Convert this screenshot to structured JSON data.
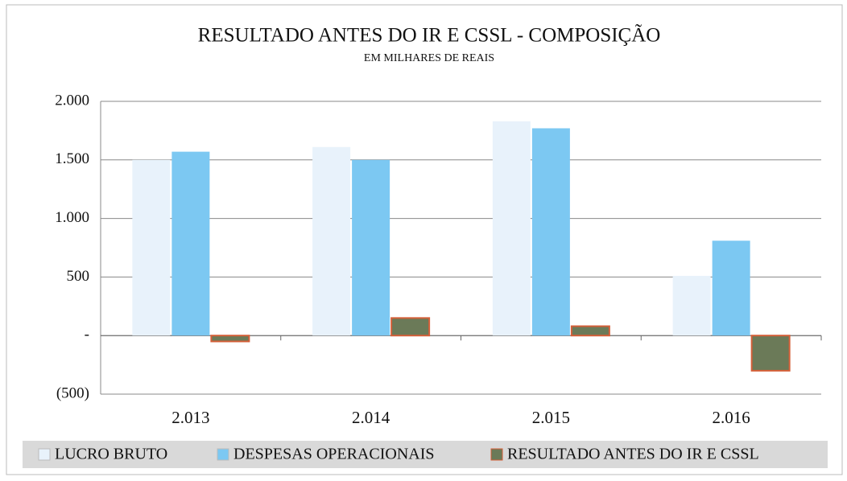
{
  "chart_data": {
    "type": "bar",
    "title": "RESULTADO ANTES DO IR E CSSL - COMPOSIÇÃO",
    "subtitle": "EM MILHARES  DE REAIS",
    "categories": [
      "2.013",
      "2.014",
      "2.015",
      "2.016"
    ],
    "series": [
      {
        "name": "LUCRO BRUTO",
        "color": "#e8f2fb",
        "values": [
          1500,
          1610,
          1830,
          510
        ]
      },
      {
        "name": "DESPESAS OPERACIONAIS",
        "color": "#7cc8f2",
        "values": [
          1570,
          1500,
          1770,
          810
        ]
      },
      {
        "name": "RESULTADO ANTES DO IR E CSSL",
        "color": "#6b7a58",
        "values": [
          -50,
          150,
          80,
          -300
        ]
      }
    ],
    "ylim": [
      -500,
      2000
    ],
    "yticks": [
      {
        "value": -500,
        "label": "(500)"
      },
      {
        "value": 0,
        "label": "-"
      },
      500,
      {
        "value": 1000,
        "label": "1.000"
      },
      {
        "value": 1500,
        "label": "1.500"
      },
      {
        "value": 2000,
        "label": "2.000"
      }
    ],
    "grid": true,
    "legend": "bottom"
  }
}
